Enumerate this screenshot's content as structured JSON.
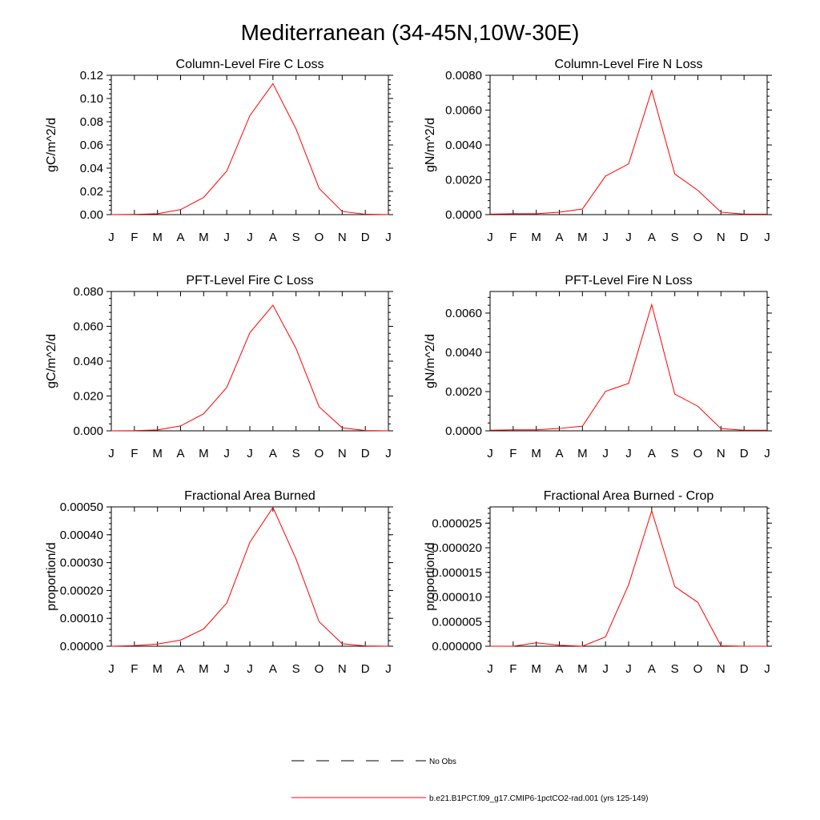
{
  "title": "Mediterranean (34-45N,10W-30E)",
  "chart_data": [
    {
      "type": "line",
      "title": "Column-Level Fire C Loss",
      "ylabel": "gC/m^2/d",
      "categories": [
        "J",
        "F",
        "M",
        "A",
        "M",
        "J",
        "J",
        "A",
        "S",
        "O",
        "N",
        "D",
        "J"
      ],
      "ylim": [
        0,
        0.12
      ],
      "yticks": [
        "0.00",
        "0.02",
        "0.04",
        "0.06",
        "0.08",
        "0.10",
        "0.12"
      ],
      "series": [
        {
          "color": "#ff0000",
          "values": [
            0.0,
            0.0002,
            0.0008,
            0.0043,
            0.0148,
            0.0375,
            0.0852,
            0.1128,
            0.0738,
            0.0226,
            0.0027,
            0.0003,
            0.0
          ]
        }
      ]
    },
    {
      "type": "line",
      "title": "Column-Level Fire N Loss",
      "ylabel": "gN/m^2/d",
      "categories": [
        "J",
        "F",
        "M",
        "A",
        "M",
        "J",
        "J",
        "A",
        "S",
        "O",
        "N",
        "D",
        "J"
      ],
      "ylim": [
        0,
        0.008
      ],
      "yticks": [
        "0.0000",
        "0.0020",
        "0.0040",
        "0.0060",
        "0.0080"
      ],
      "series": [
        {
          "color": "#ff0000",
          "values": [
            3e-05,
            5e-05,
            5e-05,
            0.00014,
            0.00032,
            0.00221,
            0.00291,
            0.00714,
            0.00233,
            0.00139,
            0.00014,
            3e-05,
            3e-05
          ]
        }
      ]
    },
    {
      "type": "line",
      "title": "PFT-Level Fire C Loss",
      "ylabel": "gC/m^2/d",
      "categories": [
        "J",
        "F",
        "M",
        "A",
        "M",
        "J",
        "J",
        "A",
        "S",
        "O",
        "N",
        "D",
        "J"
      ],
      "ylim": [
        0,
        0.08
      ],
      "yticks": [
        "0.000",
        "0.020",
        "0.040",
        "0.060",
        "0.080"
      ],
      "series": [
        {
          "color": "#ff0000",
          "values": [
            0.0,
            0.0001,
            0.0005,
            0.0028,
            0.0098,
            0.0249,
            0.0563,
            0.0721,
            0.0473,
            0.0138,
            0.0017,
            0.0002,
            0.0
          ]
        }
      ]
    },
    {
      "type": "line",
      "title": "PFT-Level Fire N Loss",
      "ylabel": "gN/m^2/d",
      "categories": [
        "J",
        "F",
        "M",
        "A",
        "M",
        "J",
        "J",
        "A",
        "S",
        "O",
        "N",
        "D",
        "J"
      ],
      "ylim": [
        0,
        0.0071
      ],
      "yticks": [
        "0.0000",
        "0.0020",
        "0.0040",
        "0.0060"
      ],
      "series": [
        {
          "color": "#ff0000",
          "values": [
            3e-05,
            5e-05,
            5e-05,
            0.00012,
            0.00024,
            0.00201,
            0.00242,
            0.00643,
            0.00187,
            0.00125,
            0.00011,
            3e-05,
            3e-05
          ]
        }
      ]
    },
    {
      "type": "line",
      "title": "Fractional Area Burned",
      "ylabel": "proportion/d",
      "categories": [
        "J",
        "F",
        "M",
        "A",
        "M",
        "J",
        "J",
        "A",
        "S",
        "O",
        "N",
        "D",
        "J"
      ],
      "ylim": [
        0,
        0.0005
      ],
      "yticks": [
        "0.00000",
        "0.00010",
        "0.00020",
        "0.00030",
        "0.00040",
        "0.00050"
      ],
      "series": [
        {
          "color": "#ff0000",
          "values": [
            0.0,
            2e-06,
            8e-06,
            2.2e-05,
            6.2e-05,
            0.000155,
            0.000373,
            0.000498,
            0.000313,
            8.8e-05,
            9e-06,
            1e-06,
            0.0
          ]
        }
      ]
    },
    {
      "type": "line",
      "title": "Fractional Area Burned - Crop",
      "ylabel": "proportion/d",
      "categories": [
        "J",
        "F",
        "M",
        "A",
        "M",
        "J",
        "J",
        "A",
        "S",
        "O",
        "N",
        "D",
        "J"
      ],
      "ylim": [
        0,
        2.83e-05
      ],
      "yticks": [
        "0.000000",
        "0.000005",
        "0.000010",
        "0.000015",
        "0.000020",
        "0.000025"
      ],
      "series": [
        {
          "color": "#ff0000",
          "values": [
            0.0,
            0.0,
            7e-07,
            2e-07,
            0.0,
            1.9e-06,
            1.25e-05,
            2.75e-05,
            1.21e-05,
            8.9e-06,
            1e-07,
            0.0,
            0.0
          ]
        }
      ]
    }
  ],
  "legend": [
    {
      "label": "No Obs",
      "style": "dashed",
      "color": "#000000"
    },
    {
      "label": "b.e21.B1PCT.f09_g17.CMIP6-1pctCO2-rad.001 (yrs 125-149)",
      "style": "solid",
      "color": "#ff0000"
    }
  ]
}
